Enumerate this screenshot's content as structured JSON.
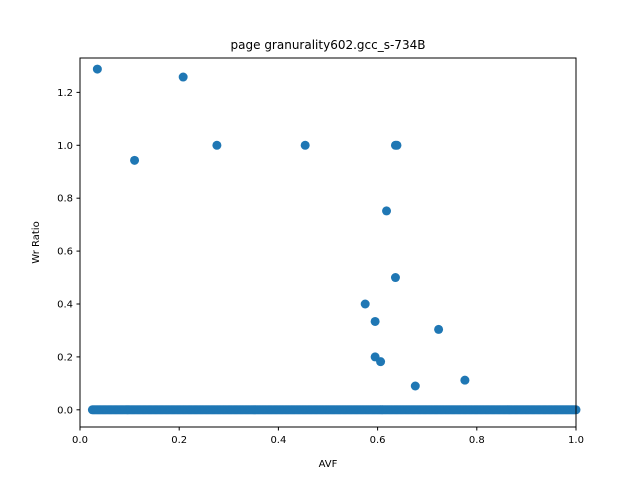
{
  "chart_data": {
    "type": "scatter",
    "title": "page granurality602.gcc_s-734B",
    "xlabel": "AVF",
    "ylabel": "Wr Ratio",
    "xlim": [
      0.0,
      1.0
    ],
    "ylim": [
      -0.065,
      1.33
    ],
    "grid": false,
    "legend": "none",
    "marker_color": "#1f77b4",
    "x_ticks": [
      {
        "value": 0.0,
        "label": "0.0"
      },
      {
        "value": 0.2,
        "label": "0.2"
      },
      {
        "value": 0.4,
        "label": "0.4"
      },
      {
        "value": 0.6,
        "label": "0.6"
      },
      {
        "value": 0.8,
        "label": "0.8"
      },
      {
        "value": 1.0,
        "label": "1.0"
      }
    ],
    "y_ticks": [
      {
        "value": 0.0,
        "label": "0.0"
      },
      {
        "value": 0.2,
        "label": "0.2"
      },
      {
        "value": 0.4,
        "label": "0.4"
      },
      {
        "value": 0.6,
        "label": "0.6"
      },
      {
        "value": 0.8,
        "label": "0.8"
      },
      {
        "value": 1.0,
        "label": "1.0"
      },
      {
        "value": 1.2,
        "label": "1.2"
      }
    ],
    "points": [
      {
        "x": 0.035,
        "y": 1.288
      },
      {
        "x": 0.11,
        "y": 0.943
      },
      {
        "x": 0.208,
        "y": 1.258
      },
      {
        "x": 0.276,
        "y": 1.0
      },
      {
        "x": 0.454,
        "y": 1.0
      },
      {
        "x": 0.636,
        "y": 1.0
      },
      {
        "x": 0.639,
        "y": 1.0
      },
      {
        "x": 0.618,
        "y": 0.752
      },
      {
        "x": 0.636,
        "y": 0.5
      },
      {
        "x": 0.575,
        "y": 0.4
      },
      {
        "x": 0.595,
        "y": 0.334
      },
      {
        "x": 0.723,
        "y": 0.304
      },
      {
        "x": 0.595,
        "y": 0.2
      },
      {
        "x": 0.606,
        "y": 0.182
      },
      {
        "x": 0.676,
        "y": 0.09
      },
      {
        "x": 0.776,
        "y": 0.112
      }
    ],
    "dense_zero_series": {
      "x_start": 0.025,
      "x_end": 1.0,
      "count": 400,
      "y": 0.0
    }
  }
}
